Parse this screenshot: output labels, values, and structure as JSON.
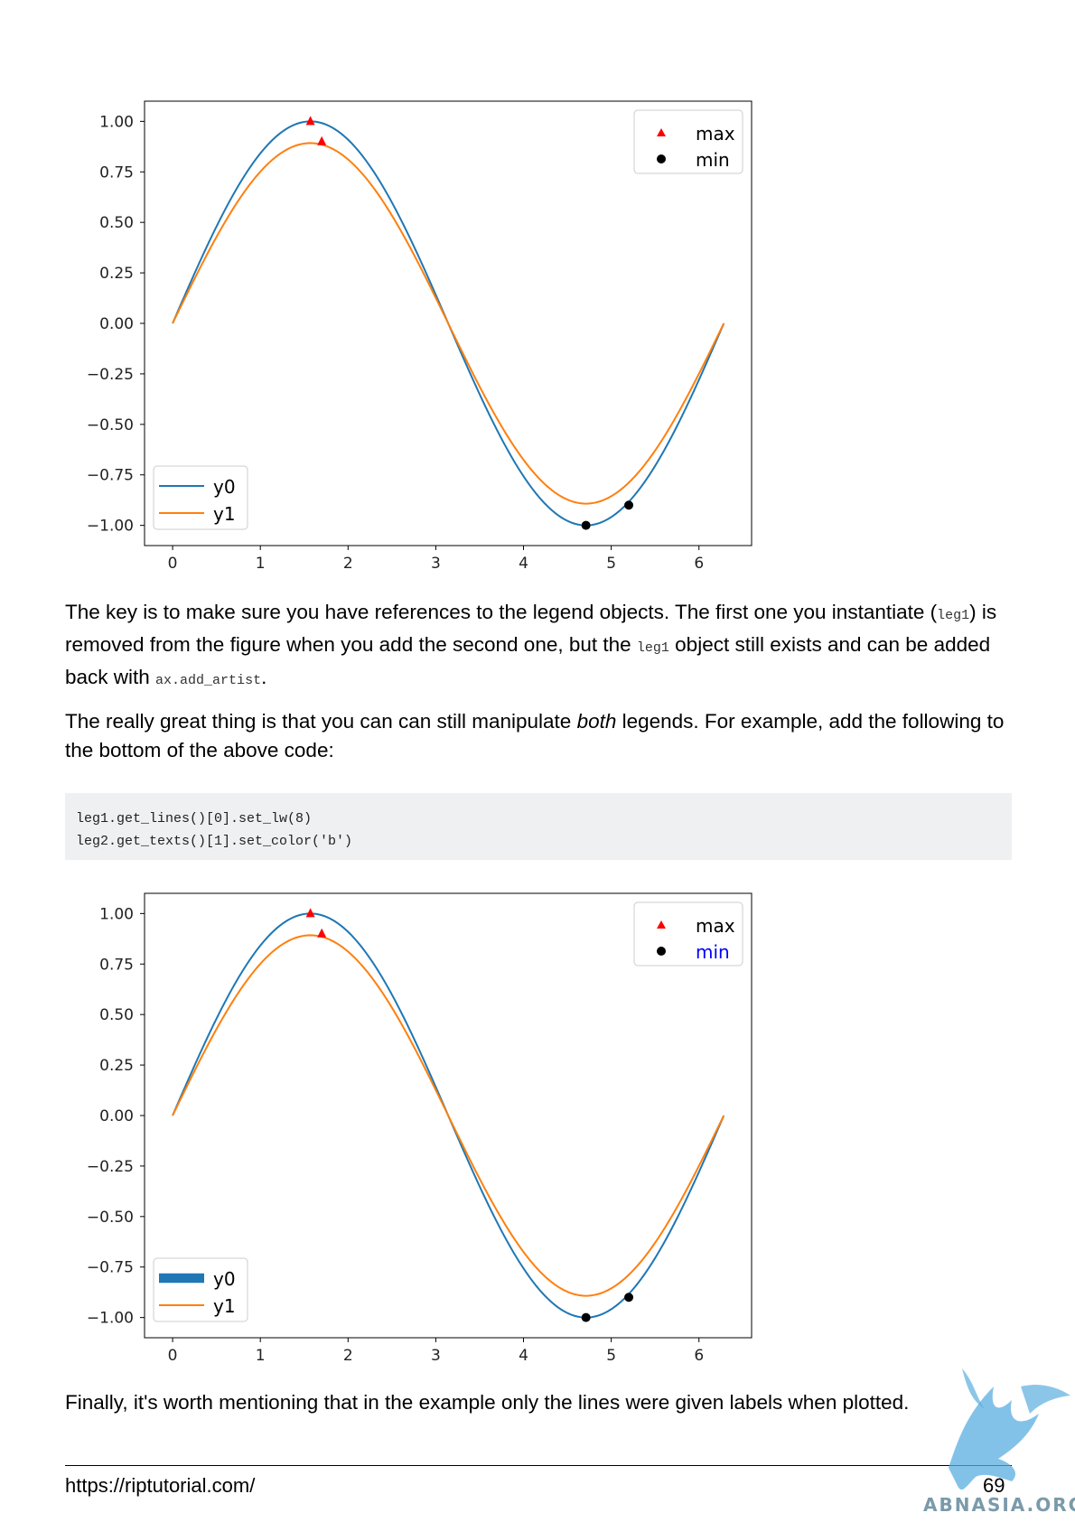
{
  "chart_data": [
    {
      "type": "line",
      "x_ticks": [
        "0",
        "1",
        "2",
        "3",
        "4",
        "5",
        "6"
      ],
      "y_ticks": [
        "1.00",
        "0.75",
        "0.50",
        "0.25",
        "0.00",
        "−0.25",
        "−0.50",
        "−0.75",
        "−1.00"
      ],
      "xlim": [
        -0.32,
        6.6
      ],
      "ylim": [
        -1.1,
        1.1
      ],
      "series": [
        {
          "name": "y0",
          "function": "sin(x)",
          "x_range": [
            0,
            6.283
          ],
          "color": "#1f77b4"
        },
        {
          "name": "y1",
          "function": "0.9*sin(x - 0.5)+... approx",
          "x_range": [
            0,
            6.283
          ],
          "color": "#ff7f0e"
        }
      ],
      "markers": [
        {
          "label": "max",
          "marker": "triangle",
          "color": "#ff0000",
          "points": [
            [
              1.571,
              1.0
            ],
            [
              1.7,
              0.9
            ]
          ]
        },
        {
          "label": "min",
          "marker": "circle",
          "color": "#000000",
          "points": [
            [
              4.712,
              -1.0
            ],
            [
              5.2,
              -0.9
            ]
          ]
        }
      ],
      "legend_markers": {
        "position": "top-right",
        "entries": [
          "max",
          "min"
        ],
        "text_colors": [
          "#000000",
          "#000000"
        ]
      },
      "legend_lines": {
        "position": "lower-left",
        "entries": [
          "y0",
          "y1"
        ],
        "line_widths": [
          1.5,
          1.5
        ]
      }
    },
    {
      "type": "line",
      "x_ticks": [
        "0",
        "1",
        "2",
        "3",
        "4",
        "5",
        "6"
      ],
      "y_ticks": [
        "1.00",
        "0.75",
        "0.50",
        "0.25",
        "0.00",
        "−0.25",
        "−0.50",
        "−0.75",
        "−1.00"
      ],
      "xlim": [
        -0.32,
        6.6
      ],
      "ylim": [
        -1.1,
        1.1
      ],
      "series": [
        {
          "name": "y0",
          "function": "sin(x)",
          "x_range": [
            0,
            6.283
          ],
          "color": "#1f77b4"
        },
        {
          "name": "y1",
          "function": "0.9*sin(x - 0.5)+... approx",
          "x_range": [
            0,
            6.283
          ],
          "color": "#ff7f0e"
        }
      ],
      "markers": [
        {
          "label": "max",
          "marker": "triangle",
          "color": "#ff0000",
          "points": [
            [
              1.571,
              1.0
            ],
            [
              1.7,
              0.9
            ]
          ]
        },
        {
          "label": "min",
          "marker": "circle",
          "color": "#000000",
          "points": [
            [
              4.712,
              -1.0
            ],
            [
              5.2,
              -0.9
            ]
          ]
        }
      ],
      "legend_markers": {
        "position": "top-right",
        "entries": [
          "max",
          "min"
        ],
        "text_colors": [
          "#000000",
          "#0000ff"
        ]
      },
      "legend_lines": {
        "position": "lower-left",
        "entries": [
          "y0",
          "y1"
        ],
        "line_widths": [
          8,
          1.5
        ]
      }
    }
  ],
  "text": {
    "p1_a": "The key is to make sure you have references to the legend objects. The first one you instantiate (",
    "p1_code1": "leg1",
    "p1_b": ") is removed from the figure when you add the second one, but the ",
    "p1_code2": "leg1",
    "p1_c": " object still exists and can be added back with ",
    "p1_code3": "ax.add_artist",
    "p1_d": ".",
    "p2_a": "The really great thing is that you can can still manipulate ",
    "p2_em": "both",
    "p2_b": " legends. For example, add the following to the bottom of the above code:",
    "code_lines": [
      "leg1.get_lines()[0].set_lw(8)",
      "leg2.get_texts()[1].set_color('b')"
    ],
    "p3": "Finally, it's worth mentioning that in the example only the lines were given labels when plotted."
  },
  "footer": {
    "url": "https://riptutorial.com/",
    "page": "69"
  },
  "watermark": {
    "text": "ABNASIA.ORG"
  }
}
